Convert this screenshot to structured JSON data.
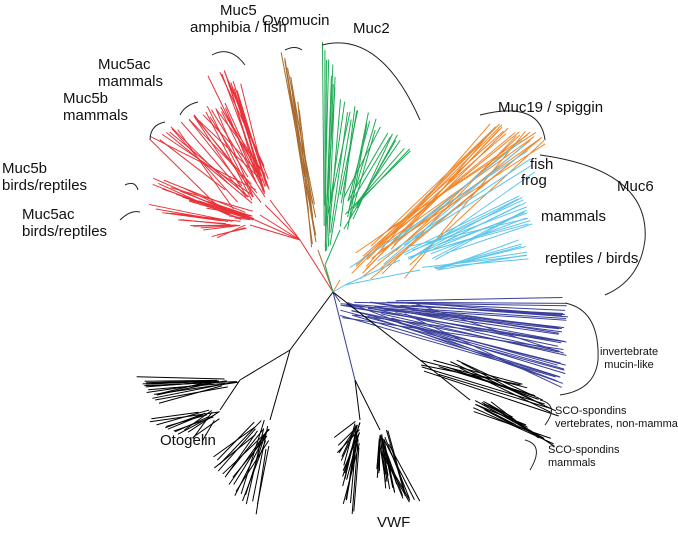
{
  "colors": {
    "muc5": "#e8333a",
    "ovomucin": "#a86a2c",
    "muc2": "#1faa55",
    "muc19": "#f0862a",
    "muc6": "#5cc6ea",
    "invertebrate": "#3a3f9a",
    "other": "#000000"
  },
  "labels": {
    "muc5_amphibia_1": "Muc5",
    "muc5_amphibia_2": "amphibia / fish",
    "ovomucin": "Ovomucin",
    "muc2": "Muc2",
    "muc5ac_mammals_1": "Muc5ac",
    "muc5ac_mammals_2": "mammals",
    "muc5b_mammals_1": "Muc5b",
    "muc5b_mammals_2": "mammals",
    "muc5b_birds_1": "Muc5b",
    "muc5b_birds_2": "birds/reptiles",
    "muc5ac_birds_1": "Muc5ac",
    "muc5ac_birds_2": "birds/reptiles",
    "muc19": "Muc19 / spiggin",
    "fish": "fish",
    "frog": "frog",
    "muc6": "Muc6",
    "mammals": "mammals",
    "reptiles_birds": "reptiles / birds",
    "invertebrate_1": "invertebrate",
    "invertebrate_2": "mucin-like",
    "sco_nonmammals_1": "SCO-spondins",
    "sco_nonmammals_2": "vertebrates, non-mammals",
    "sco_mammals_1": "SCO-spondins",
    "sco_mammals_2": "mammals",
    "otogelin": "Otogelin",
    "vwf": "VWF"
  }
}
